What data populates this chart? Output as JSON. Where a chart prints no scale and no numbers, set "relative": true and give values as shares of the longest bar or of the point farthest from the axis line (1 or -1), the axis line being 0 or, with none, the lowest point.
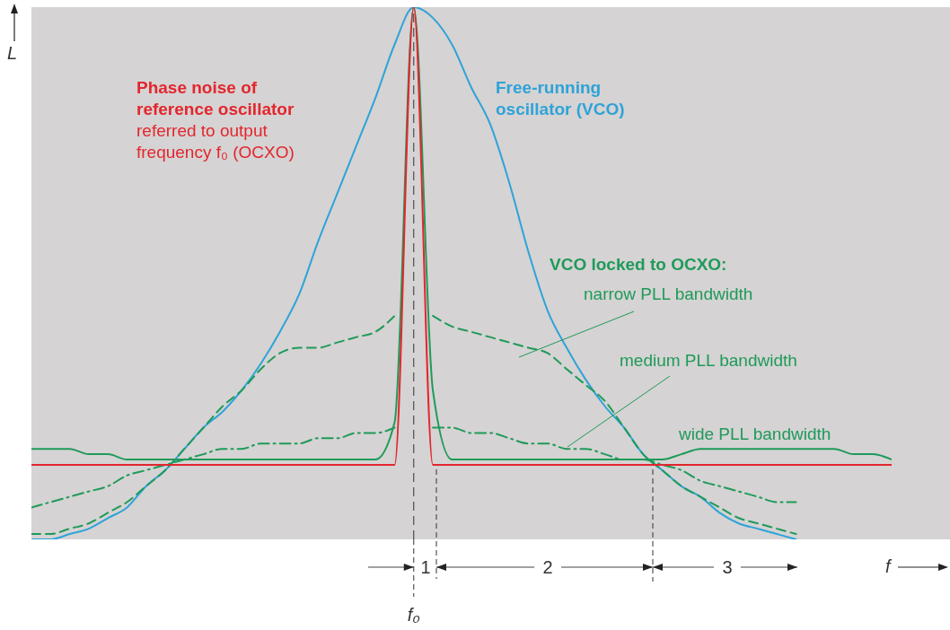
{
  "chart_data": {
    "type": "line",
    "relative": true,
    "xlabel": "f",
    "ylabel": "L",
    "categories": [
      null,
      null,
      null,
      null,
      null,
      null,
      null,
      null,
      null,
      null,
      null,
      null,
      null,
      null,
      null,
      null,
      null,
      null,
      null,
      null,
      null,
      null,
      null,
      null,
      null,
      null,
      null,
      null,
      null,
      null,
      null,
      null,
      null,
      null,
      null,
      null,
      null,
      null,
      null,
      null,
      null,
      null,
      null,
      null,
      null,
      null
    ],
    "series": [
      {
        "name": "Free-running oscillator (VCO)",
        "color": "#2ea3d8",
        "line_style": "solid",
        "values": [
          0.0,
          0.0,
          0.01,
          0.02,
          0.04,
          0.06,
          0.1,
          0.13,
          0.17,
          0.21,
          0.24,
          0.28,
          0.33,
          0.39,
          0.46,
          0.56,
          0.65,
          0.74,
          0.83,
          0.93,
          1.0,
          0.98,
          0.93,
          0.85,
          0.78,
          0.67,
          0.54,
          0.43,
          0.36,
          0.3,
          0.25,
          0.21,
          0.16,
          0.13,
          0.1,
          0.08,
          0.05,
          0.03,
          0.02,
          0.01,
          0.0,
          null,
          null,
          null,
          null,
          null
        ]
      },
      {
        "name": "narrow PLL bandwidth",
        "color": "#1f9a5a",
        "line_style": "dashed",
        "values": [
          0.01,
          0.01,
          0.02,
          0.03,
          0.05,
          0.07,
          0.1,
          0.13,
          0.17,
          0.21,
          0.25,
          0.28,
          0.32,
          0.35,
          0.36,
          0.36,
          0.37,
          0.38,
          0.39,
          0.42,
          null,
          0.42,
          0.4,
          0.39,
          0.38,
          0.37,
          0.36,
          0.35,
          0.32,
          0.29,
          0.26,
          0.21,
          0.16,
          0.13,
          0.1,
          0.08,
          0.06,
          0.04,
          0.03,
          0.02,
          0.01,
          null,
          null,
          null,
          null,
          null
        ]
      },
      {
        "name": "medium PLL bandwidth",
        "color": "#1f9a5a",
        "line_style": "dashdot",
        "values": [
          0.06,
          0.07,
          0.08,
          0.09,
          0.1,
          0.12,
          0.13,
          0.14,
          0.15,
          0.16,
          0.17,
          0.17,
          0.18,
          0.18,
          0.18,
          0.19,
          0.19,
          0.2,
          0.2,
          0.21,
          null,
          0.21,
          0.21,
          0.2,
          0.2,
          0.19,
          0.18,
          0.18,
          0.17,
          0.17,
          0.16,
          0.15,
          0.15,
          0.14,
          0.13,
          0.11,
          0.1,
          0.09,
          0.08,
          0.07,
          0.07,
          null,
          null,
          null,
          null,
          null
        ]
      },
      {
        "name": "wide PLL bandwidth",
        "color": "#1f9a5a",
        "line_style": "solid",
        "values": [
          0.17,
          0.17,
          0.17,
          0.16,
          0.16,
          0.15,
          0.15,
          0.15,
          0.15,
          0.15,
          0.15,
          0.15,
          0.15,
          0.15,
          0.15,
          0.15,
          0.15,
          0.15,
          0.15,
          0.22,
          1.0,
          0.28,
          0.15,
          0.15,
          0.15,
          0.15,
          0.15,
          0.15,
          0.15,
          0.15,
          0.15,
          0.15,
          0.15,
          0.15,
          0.16,
          0.17,
          0.17,
          0.17,
          0.17,
          0.17,
          0.17,
          0.17,
          0.17,
          0.16,
          0.16,
          0.15
        ]
      },
      {
        "name": "Phase noise of reference oscillator",
        "color": "#e3262e",
        "line_style": "solid",
        "values": [
          0.14,
          0.14,
          0.14,
          0.14,
          0.14,
          0.14,
          0.14,
          0.14,
          0.14,
          0.14,
          0.14,
          0.14,
          0.14,
          0.14,
          0.14,
          0.14,
          0.14,
          0.14,
          0.14,
          0.14,
          1.0,
          0.14,
          0.14,
          0.14,
          0.14,
          0.14,
          0.14,
          0.14,
          0.14,
          0.14,
          0.14,
          0.14,
          0.14,
          0.14,
          0.14,
          0.14,
          0.14,
          0.14,
          0.14,
          0.14,
          0.14,
          0.14,
          0.14,
          0.14,
          0.14,
          0.14
        ]
      }
    ],
    "ref_lines": [
      {
        "axis": "x",
        "label": "f₀",
        "color": "#333333",
        "line_style": "dashed"
      }
    ],
    "annotations": [
      "referred to output frequency f₀ (OCXO)",
      "VCO locked to OCXO:",
      "1",
      "2",
      "3"
    ]
  }
}
